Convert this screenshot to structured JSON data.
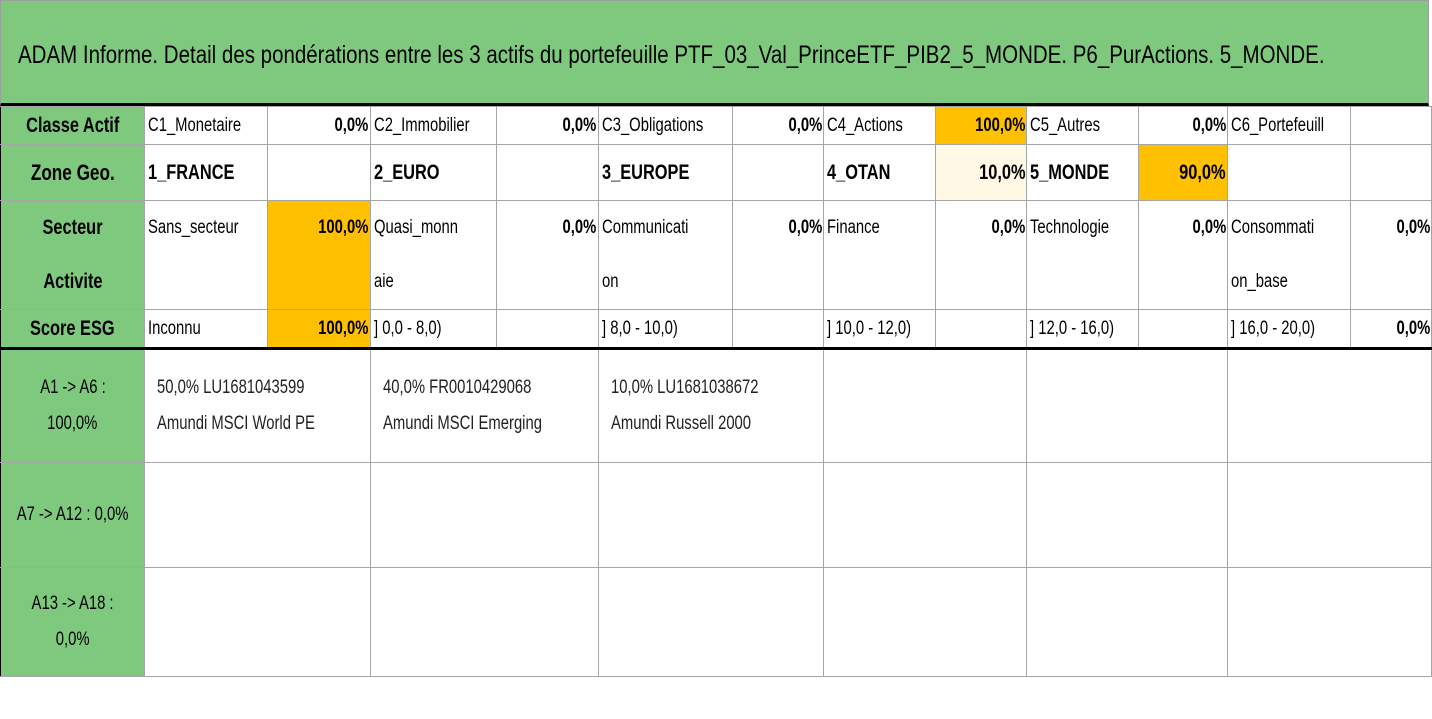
{
  "title": "ADAM Informe. Detail des pondérations entre les 3 actifs du portefeuille PTF_03_Val_PrinceETF_PIB2_5_MONDE. P6_PurActions. 5_MONDE.",
  "classe": {
    "header": "Classe Actif",
    "items": [
      {
        "label": "C1_Monetaire",
        "value": "0,0%"
      },
      {
        "label": "C2_Immobilier",
        "value": "0,0%"
      },
      {
        "label": "C3_Obligations",
        "value": "0,0%"
      },
      {
        "label": "C4_Actions",
        "value": "100,0%"
      },
      {
        "label": "C5_Autres",
        "value": "0,0%"
      },
      {
        "label": "C6_Portefeuill",
        "value": ""
      }
    ]
  },
  "zone": {
    "header": "Zone Geo.",
    "items": [
      {
        "label": "1_FRANCE",
        "value": ""
      },
      {
        "label": "2_EURO",
        "value": ""
      },
      {
        "label": "3_EUROPE",
        "value": ""
      },
      {
        "label": "4_OTAN",
        "value": "10,0%"
      },
      {
        "label": "5_MONDE",
        "value": "90,0%"
      },
      {
        "label": "",
        "value": ""
      }
    ]
  },
  "secteur": {
    "header_line1": "Secteur",
    "header_line2": "Activite",
    "items": [
      {
        "label1": "Sans_secteur",
        "label2": "",
        "value": "100,0%"
      },
      {
        "label1": "Quasi_monn",
        "label2": "aie",
        "value": "0,0%"
      },
      {
        "label1": "Communicati",
        "label2": "on",
        "value": "0,0%"
      },
      {
        "label1": "Finance",
        "label2": "",
        "value": "0,0%"
      },
      {
        "label1": "Technologie",
        "label2": "",
        "value": "0,0%"
      },
      {
        "label1": "Consommati",
        "label2": "on_base",
        "value": "0,0%"
      }
    ]
  },
  "esg": {
    "header": "Score ESG",
    "items": [
      {
        "label": "Inconnu",
        "value": "100,0%"
      },
      {
        "label": "] 0,0 - 8,0)",
        "value": ""
      },
      {
        "label": "] 8,0 - 10,0)",
        "value": ""
      },
      {
        "label": "] 10,0 - 12,0)",
        "value": ""
      },
      {
        "label": "] 12,0 - 16,0)",
        "value": ""
      },
      {
        "label": "] 16,0 - 20,0)",
        "value": "0,0%"
      }
    ]
  },
  "assets": {
    "group1": {
      "line1": "A1 -> A6 :",
      "line2": "100,0%"
    },
    "group2": {
      "line1": "A7 -> A12 : 0,0%"
    },
    "group3": {
      "line1": "A13 -> A18 :",
      "line2": "0,0%"
    },
    "items": [
      {
        "line1": "50,0% LU1681043599",
        "line2": "Amundi MSCI World PE"
      },
      {
        "line1": "40,0% FR0010429068",
        "line2": "Amundi MSCI Emerging"
      },
      {
        "line1": "10,0% LU1681038672",
        "line2": "Amundi Russell 2000"
      }
    ]
  },
  "colors": {
    "header_green": "#7fc97f",
    "highlight_orange": "#ffc000",
    "highlight_cream": "#fff8e5"
  }
}
